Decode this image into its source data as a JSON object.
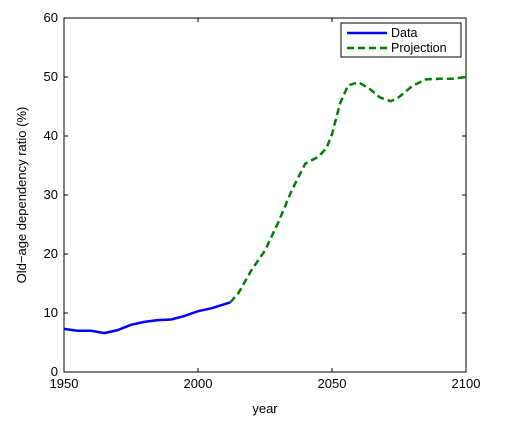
{
  "chart_data": {
    "type": "line",
    "title": "",
    "xlabel": "year",
    "ylabel": "Old−age dependency ratio (%)",
    "xlim": [
      1950,
      2100
    ],
    "ylim": [
      0,
      60
    ],
    "x_ticks": [
      1950,
      2000,
      2050,
      2100
    ],
    "y_ticks": [
      0,
      10,
      20,
      30,
      40,
      50,
      60
    ],
    "grid": false,
    "legend_position": "top-right",
    "series": [
      {
        "name": "Data",
        "style": "solid",
        "color": "#0000ff",
        "x": [
          1950,
          1955,
          1960,
          1965,
          1970,
          1975,
          1980,
          1985,
          1990,
          1995,
          2000,
          2005,
          2010,
          2012
        ],
        "y": [
          7.3,
          7.0,
          7.0,
          6.6,
          7.1,
          8.0,
          8.5,
          8.8,
          8.9,
          9.5,
          10.3,
          10.8,
          11.5,
          11.8
        ]
      },
      {
        "name": "Projection",
        "style": "dashed",
        "color": "#007f00",
        "x": [
          2012,
          2015,
          2020,
          2025,
          2030,
          2035,
          2040,
          2045,
          2048,
          2050,
          2053,
          2056,
          2060,
          2064,
          2068,
          2072,
          2075,
          2080,
          2085,
          2090,
          2095,
          2100
        ],
        "y": [
          11.8,
          13.3,
          17.3,
          20.6,
          25.4,
          30.8,
          35.3,
          36.5,
          38.0,
          40.3,
          45.5,
          48.6,
          49.1,
          48.0,
          46.5,
          45.9,
          46.6,
          48.5,
          49.6,
          49.7,
          49.7,
          50.0
        ]
      }
    ]
  }
}
